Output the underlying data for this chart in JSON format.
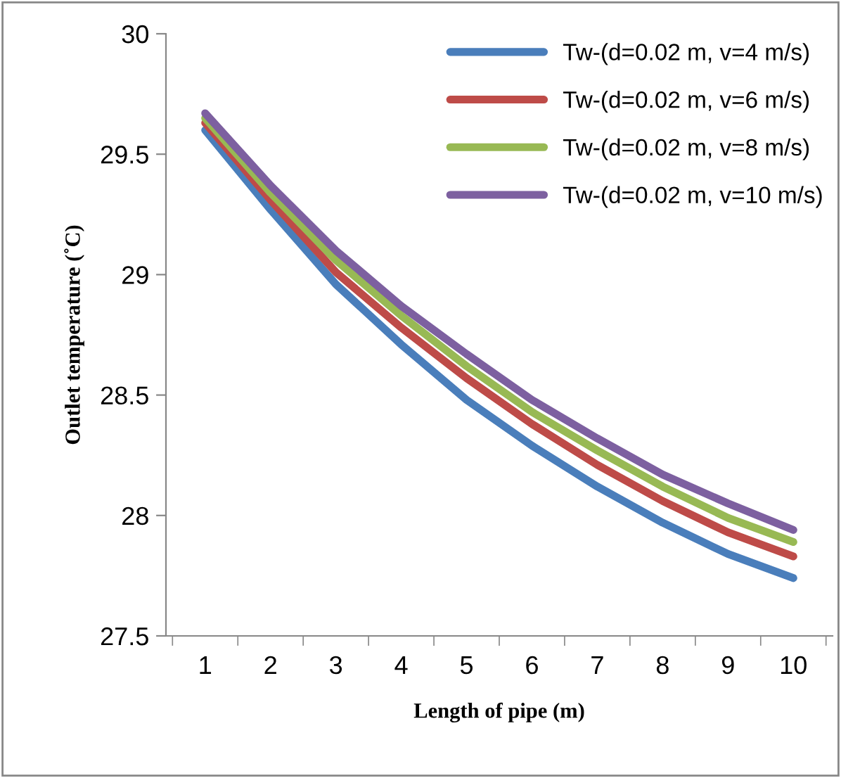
{
  "chart_data": {
    "type": "line",
    "xlabel": "Length of pipe (m)",
    "ylabel": "Outlet temperature (˚C)",
    "categories": [
      "1",
      "2",
      "3",
      "4",
      "5",
      "6",
      "7",
      "8",
      "9",
      "10"
    ],
    "series": [
      {
        "name": "Tw-(d=0.02 m, v=4 m/s)",
        "color": "#4a7ebb",
        "values": [
          29.6,
          29.27,
          28.96,
          28.71,
          28.48,
          28.29,
          28.12,
          27.97,
          27.84,
          27.74
        ]
      },
      {
        "name": "Tw-(d=0.02 m, v=6 m/s)",
        "color": "#be4b48",
        "values": [
          29.63,
          29.31,
          29.01,
          28.78,
          28.57,
          28.38,
          28.21,
          28.06,
          27.93,
          27.83
        ]
      },
      {
        "name": "Tw-(d=0.02 m, v=8 m/s)",
        "color": "#98b954",
        "values": [
          29.65,
          29.34,
          29.06,
          28.83,
          28.62,
          28.43,
          28.27,
          28.12,
          27.99,
          27.89
        ]
      },
      {
        "name": "Tw-(d=0.02 m, v=10 m/s)",
        "color": "#7d60a0",
        "values": [
          29.67,
          29.37,
          29.1,
          28.87,
          28.67,
          28.48,
          28.32,
          28.17,
          28.05,
          27.94
        ]
      }
    ],
    "ylim": [
      27.5,
      30
    ],
    "yticks": [
      27.5,
      28,
      28.5,
      29,
      29.5,
      30
    ],
    "legend": "top right",
    "grid": false,
    "marker": "none",
    "line_style": "solid"
  }
}
